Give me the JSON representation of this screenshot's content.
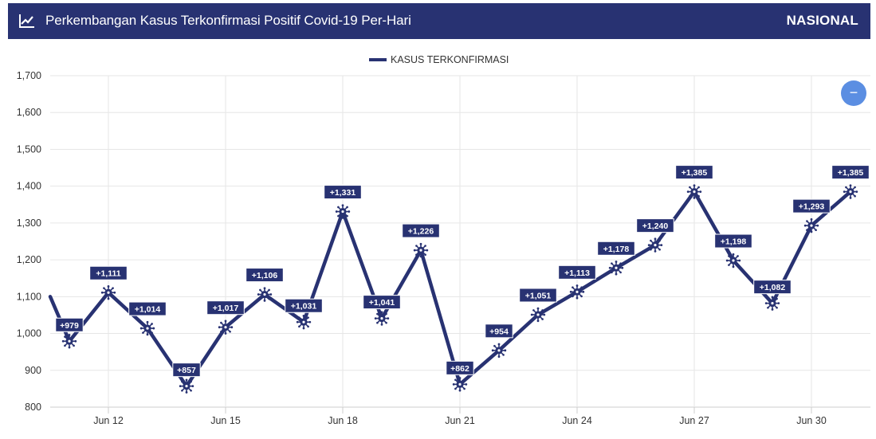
{
  "header": {
    "title": "Perkembangan Kasus Terkonfirmasi Positif Covid-19 Per-Hari",
    "scope": "NASIONAL",
    "icon": "trending-up-icon",
    "background": "#283272"
  },
  "zoom_button": {
    "icon": "minus-icon",
    "label": "−",
    "color": "#5b8ee2"
  },
  "chart_data": {
    "type": "line",
    "title": "",
    "xlabel": "",
    "ylabel": "",
    "ylim": [
      800,
      1700
    ],
    "yticks": [
      800,
      900,
      1000,
      1100,
      1200,
      1300,
      1400,
      1500,
      1600,
      1700
    ],
    "ytick_labels": [
      "800",
      "900",
      "1,000",
      "1,100",
      "1,200",
      "1,300",
      "1,400",
      "1,500",
      "1,600",
      "1,700"
    ],
    "xtick_labels": [
      "Jun 12",
      "Jun 15",
      "Jun 18",
      "Jun 21",
      "Jun 24",
      "Jun 27",
      "Jun 30"
    ],
    "xtick_days": [
      12,
      15,
      18,
      21,
      24,
      27,
      30
    ],
    "grid": true,
    "legend": {
      "position": "top-center",
      "entries": [
        "KASUS TERKONFIRMASI"
      ]
    },
    "series": [
      {
        "name": "KASUS TERKONFIRMASI",
        "color": "#283272",
        "marker": "virus-icon",
        "leading_value": 1100,
        "points": [
          {
            "day": 11,
            "value": 979,
            "label": "+979"
          },
          {
            "day": 12,
            "value": 1111,
            "label": "+1,111"
          },
          {
            "day": 13,
            "value": 1014,
            "label": "+1,014"
          },
          {
            "day": 14,
            "value": 857,
            "label": "+857"
          },
          {
            "day": 15,
            "value": 1017,
            "label": "+1,017"
          },
          {
            "day": 16,
            "value": 1106,
            "label": "+1,106"
          },
          {
            "day": 17,
            "value": 1031,
            "label": "+1,031"
          },
          {
            "day": 18,
            "value": 1331,
            "label": "+1,331"
          },
          {
            "day": 19,
            "value": 1041,
            "label": "+1,041"
          },
          {
            "day": 20,
            "value": 1226,
            "label": "+1,226"
          },
          {
            "day": 21,
            "value": 862,
            "label": "+862"
          },
          {
            "day": 22,
            "value": 954,
            "label": "+954"
          },
          {
            "day": 23,
            "value": 1051,
            "label": "+1,051"
          },
          {
            "day": 24,
            "value": 1113,
            "label": "+1,113"
          },
          {
            "day": 25,
            "value": 1178,
            "label": "+1,178"
          },
          {
            "day": 26,
            "value": 1240,
            "label": "+1,240"
          },
          {
            "day": 27,
            "value": 1385,
            "label": "+1,385"
          },
          {
            "day": 28,
            "value": 1198,
            "label": "+1,198"
          },
          {
            "day": 29,
            "value": 1082,
            "label": "+1,082"
          },
          {
            "day": 30,
            "value": 1293,
            "label": "+1,293"
          },
          {
            "day": 31,
            "value": 1385,
            "label": "+1,385"
          }
        ]
      }
    ]
  }
}
